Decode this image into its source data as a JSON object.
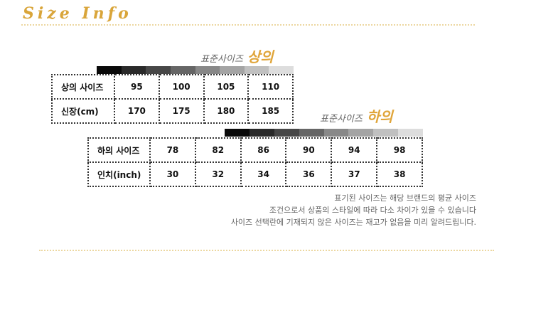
{
  "title": "Size Info",
  "top": {
    "caption_prefix": "표준사이즈",
    "caption_highlight": "상의",
    "rows": [
      {
        "label": "상의 사이즈",
        "values": [
          "95",
          "100",
          "105",
          "110"
        ]
      },
      {
        "label": "신장(cm)",
        "values": [
          "170",
          "175",
          "180",
          "185"
        ]
      }
    ]
  },
  "bottom": {
    "caption_prefix": "표준사이즈",
    "caption_highlight": "하의",
    "rows": [
      {
        "label": "하의 사이즈",
        "values": [
          "78",
          "82",
          "86",
          "90",
          "94",
          "98"
        ]
      },
      {
        "label": "인치(inch)",
        "values": [
          "30",
          "32",
          "34",
          "36",
          "37",
          "38"
        ]
      }
    ]
  },
  "grayscale": [
    "#0a0a0a",
    "#2a2a2a",
    "#474747",
    "#666666",
    "#888888",
    "#a4a4a4",
    "#c0c0c0",
    "#dddddd"
  ],
  "accent": "#d9a53a",
  "notes": [
    "표기된 사이즈는 해당 브랜드의 평균 사이즈",
    "조건으로서 상품의 스타일에 따라 다소 차이가 있을 수 있습니다",
    "사이즈 선택란에 기재되지 않은 사이즈는 재고가 없음을 미리 알려드립니다."
  ]
}
